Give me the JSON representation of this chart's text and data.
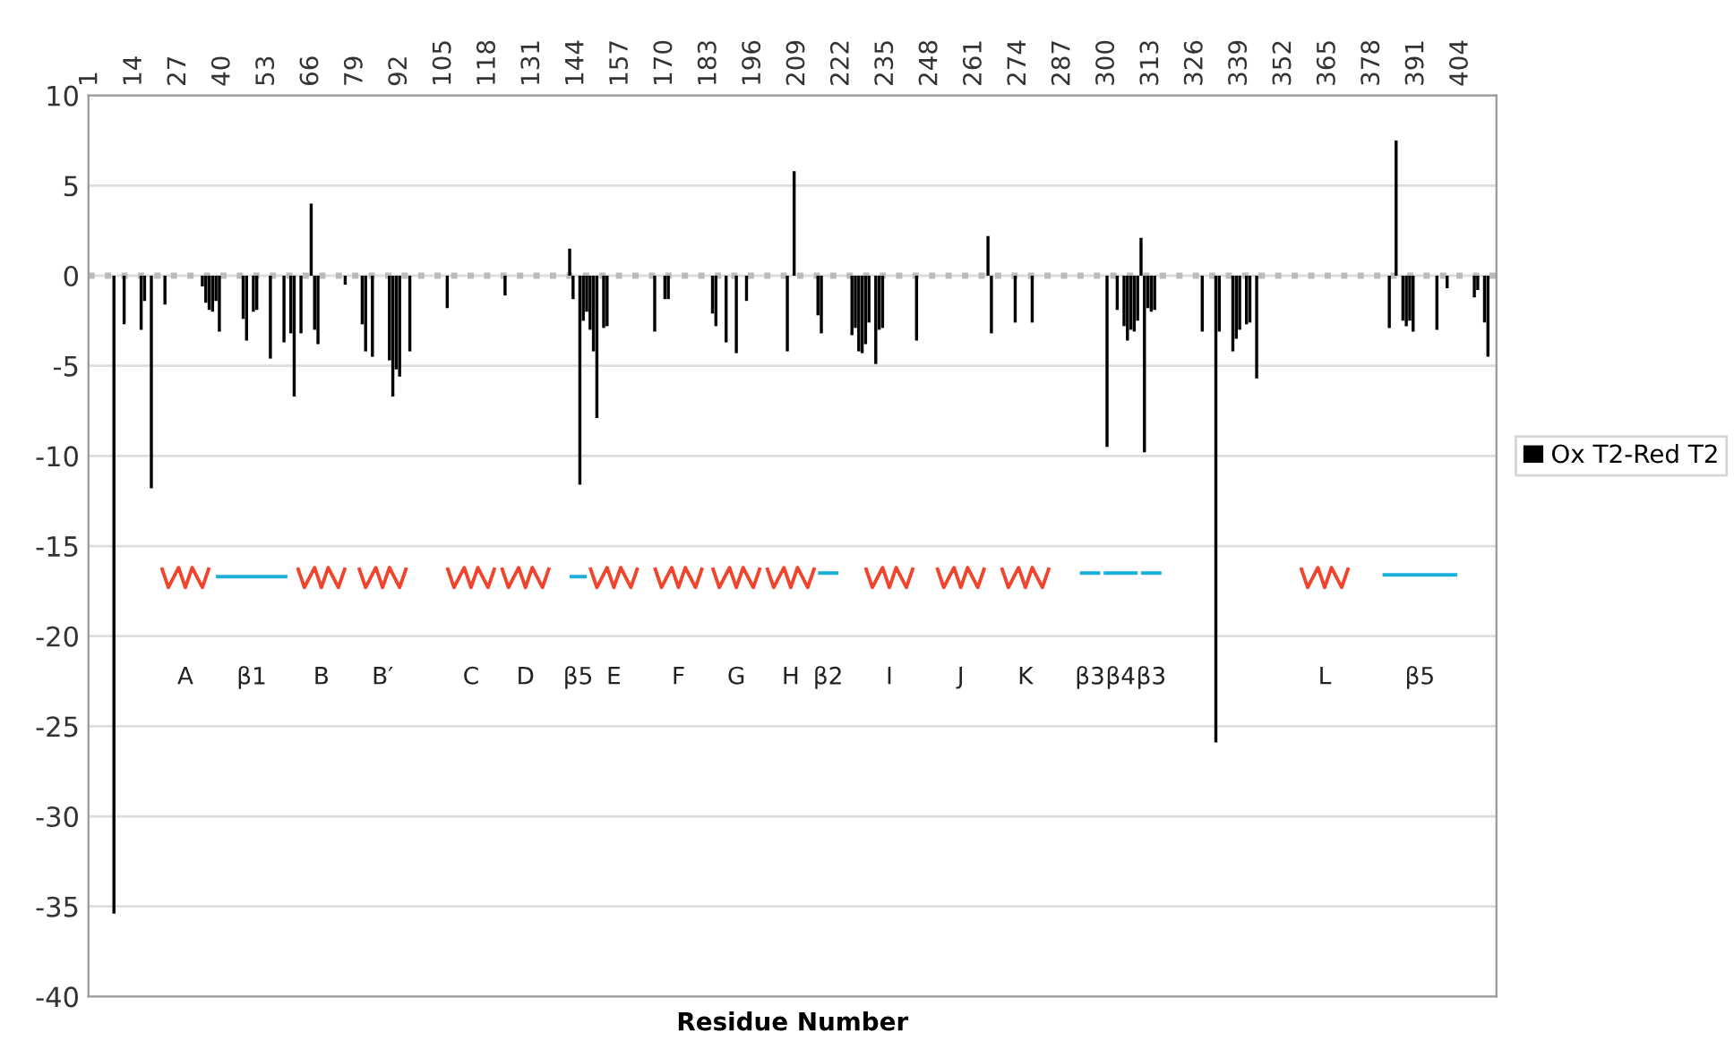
{
  "chart_data": {
    "type": "bar",
    "xlabel": "Residue Number",
    "xlim": [
      0.5,
      414.5
    ],
    "xticks": [
      1,
      14,
      27,
      40,
      53,
      66,
      79,
      92,
      105,
      118,
      131,
      144,
      157,
      170,
      183,
      196,
      209,
      222,
      235,
      248,
      261,
      274,
      287,
      300,
      313,
      326,
      339,
      352,
      365,
      378,
      391,
      404
    ],
    "ylim": [
      -40,
      10
    ],
    "yticks": [
      10,
      5,
      0,
      -5,
      -10,
      -15,
      -20,
      -25,
      -30,
      -35,
      -40
    ],
    "grid": "y",
    "legend": "right",
    "ref_lines": [
      {
        "axis": "y",
        "value": 0,
        "color": "#bbbbbb",
        "line_style": "dotted"
      }
    ],
    "series": [
      {
        "name": "Ox T2-Red T2",
        "color": "#000000",
        "x": [
          8,
          11,
          16,
          17,
          19,
          23,
          34,
          35,
          36,
          37,
          38,
          39,
          46,
          47,
          49,
          50,
          54,
          58,
          60,
          61,
          63,
          66,
          67,
          68,
          76,
          81,
          82,
          84,
          89,
          90,
          91,
          92,
          95,
          106,
          123,
          142,
          143,
          145,
          146,
          147,
          148,
          149,
          150,
          152,
          153,
          167,
          170,
          171,
          184,
          185,
          188,
          191,
          194,
          206,
          208,
          215,
          216,
          225,
          226,
          227,
          228,
          229,
          230,
          232,
          233,
          234,
          244,
          265,
          266,
          273,
          278,
          300,
          303,
          305,
          306,
          307,
          308,
          309,
          310,
          311,
          312,
          313,
          314,
          328,
          332,
          333,
          337,
          338,
          339,
          341,
          342,
          344,
          383,
          385,
          387,
          388,
          389,
          390,
          397,
          400,
          408,
          409,
          411,
          412
        ],
        "values": [
          -35.4,
          -2.7,
          -3.0,
          -1.4,
          -11.8,
          -1.6,
          -0.6,
          -1.5,
          -1.9,
          -2.0,
          -1.4,
          -3.1,
          -2.4,
          -3.6,
          -2.0,
          -1.9,
          -4.6,
          -3.7,
          -3.2,
          -6.7,
          -3.2,
          4.0,
          -3.0,
          -3.8,
          -0.5,
          -2.7,
          -4.2,
          -4.5,
          -4.7,
          -6.7,
          -5.2,
          -5.6,
          -4.2,
          -1.8,
          -1.1,
          1.5,
          -1.3,
          -11.6,
          -2.5,
          -2.0,
          -3.0,
          -4.2,
          -7.9,
          -2.9,
          -2.8,
          -3.1,
          -1.3,
          -1.3,
          -2.1,
          -2.8,
          -3.7,
          -4.3,
          -1.4,
          -4.2,
          5.8,
          -2.2,
          -3.2,
          -3.3,
          -2.9,
          -4.2,
          -4.3,
          -3.8,
          -2.6,
          -4.9,
          -3.0,
          -2.9,
          -3.6,
          2.2,
          -3.2,
          -2.6,
          -2.6,
          -9.5,
          -1.9,
          -2.8,
          -3.6,
          -3.0,
          -3.1,
          -2.5,
          2.1,
          -9.8,
          -1.8,
          -2.0,
          -1.9,
          -3.1,
          -25.9,
          -3.1,
          -4.2,
          -3.5,
          -3.0,
          -2.7,
          -2.6,
          -5.7,
          -2.9,
          7.5,
          -2.5,
          -2.8,
          -2.5,
          -3.1,
          -3.0,
          -0.7,
          -1.2,
          -0.8,
          -2.6,
          -4.5
        ]
      },
      {
        "color": "#f0442c",
        "type": "line",
        "x": [
          22,
          24,
          27,
          29,
          31,
          34,
          36,
          37,
          62,
          64,
          67,
          69,
          71,
          74,
          76,
          78,
          80,
          82,
          85,
          87,
          89,
          92,
          94,
          95,
          106,
          108,
          111,
          113,
          115,
          118,
          120,
          121,
          122,
          124,
          127,
          129,
          131,
          134,
          136,
          137,
          148,
          150,
          153,
          155,
          157,
          160,
          162,
          164,
          167,
          169,
          172,
          174,
          176,
          179,
          181,
          182,
          184,
          186,
          189,
          191,
          193,
          196,
          198,
          199,
          200,
          202,
          205,
          207,
          209,
          212,
          214,
          220,
          229,
          231,
          234,
          236,
          238,
          241,
          243,
          245,
          250,
          252,
          255,
          257,
          259,
          262,
          264,
          266,
          269,
          271,
          274,
          276,
          278,
          281,
          283,
          300,
          357,
          359,
          362,
          364,
          366,
          369,
          371
        ],
        "values": [
          -16.2,
          -17.3,
          -16.2,
          -17.3,
          -16.2,
          -17.3,
          -16.2,
          null,
          -16.2,
          -17.3,
          -16.2,
          -17.3,
          -16.2,
          -17.3,
          -16.2,
          null,
          -16.2,
          -17.3,
          -16.2,
          -17.3,
          -16.2,
          -17.3,
          -16.2,
          null,
          -16.2,
          -17.3,
          -16.2,
          -17.3,
          -16.2,
          -17.3,
          -16.2,
          null,
          -16.2,
          -17.3,
          -16.2,
          -17.3,
          -16.2,
          -17.3,
          -16.2,
          null,
          -16.2,
          -17.3,
          -16.2,
          -17.3,
          -16.2,
          -17.3,
          -16.2,
          null,
          -16.2,
          -17.3,
          -16.2,
          -17.3,
          -16.2,
          -17.3,
          -16.2,
          null,
          -16.2,
          -17.3,
          -16.2,
          -17.3,
          -16.2,
          -17.3,
          -16.2,
          null,
          -16.2,
          -17.3,
          -16.2,
          -17.3,
          -16.2,
          -17.3,
          -16.2,
          null,
          -16.2,
          -17.3,
          -16.2,
          -17.3,
          -16.2,
          -17.3,
          -16.2,
          null,
          -16.2,
          -17.3,
          -16.2,
          -17.3,
          -16.2,
          -17.3,
          -16.2,
          null,
          -16.2,
          -17.3,
          -16.2,
          -17.3,
          -16.2,
          -17.3,
          -16.2,
          null,
          -16.2,
          -17.3,
          -16.2,
          -17.3,
          -16.2,
          -17.3,
          -16.2
        ]
      },
      {
        "color": "#1ab0d8",
        "type": "line",
        "x": [
          38,
          59,
          60,
          142,
          147,
          148,
          215,
          221,
          222,
          292,
          298,
          298.5,
          299,
          309,
          309.5,
          310,
          316,
          317,
          381,
          403
        ],
        "values": [
          -16.7,
          -16.7,
          null,
          -16.7,
          -16.7,
          null,
          -16.5,
          -16.5,
          null,
          -16.5,
          -16.5,
          null,
          -16.5,
          -16.5,
          null,
          -16.5,
          -16.5,
          null,
          -16.6,
          -16.6
        ]
      }
    ],
    "annotations": [
      "A",
      "β1",
      "B",
      "B′",
      "C",
      "D",
      "β5",
      "E",
      "F",
      "G",
      "H",
      "β2",
      "I",
      "J",
      "K",
      "β3",
      "β4",
      "β3",
      "L",
      "β5"
    ]
  }
}
